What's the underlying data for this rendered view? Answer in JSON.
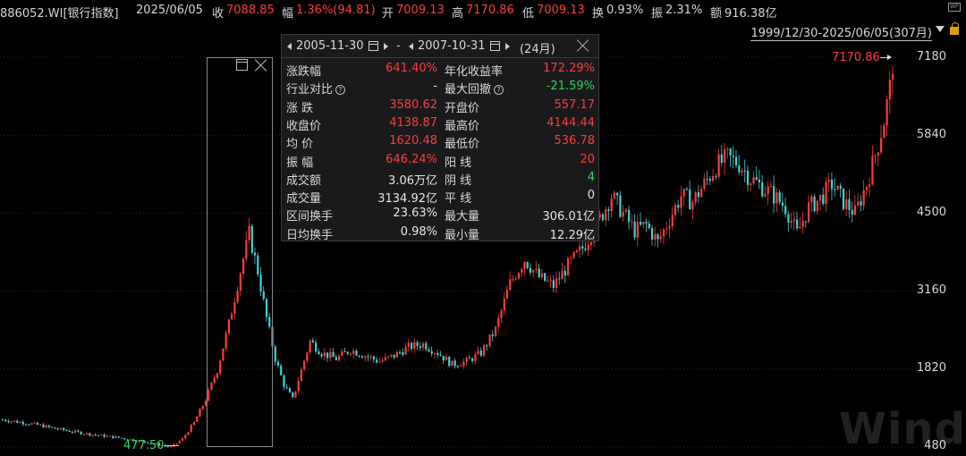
{
  "header": {
    "code": "886052.WI[银行指数]",
    "date": "2025/06/05",
    "close_label": "收",
    "close_value": "7088.85",
    "change_label": "幅",
    "change_value": "1.36%(94.81)",
    "open_label": "开",
    "open_value": "7009.13",
    "high_label": "高",
    "high_value": "7170.86",
    "low_label": "低",
    "low_value": "7009.13",
    "turnover_label": "换",
    "turnover_value": "0.93%",
    "amplitude_label": "振",
    "amplitude_value": "2.31%",
    "amount_label": "额",
    "amount_value": "916.38亿",
    "range_text": "1999/12/30-2025/06/05(307月)",
    "wp_badge": "WP"
  },
  "panel": {
    "start_date": "2005-11-30",
    "end_date": "2007-10-31",
    "separator": "-",
    "months": "(24月)",
    "rows": [
      {
        "l1": "涨跌幅",
        "v1": "641.40%",
        "c1": "red",
        "l2": "年化收益率",
        "v2": "172.29%",
        "c2": "red"
      },
      {
        "l1": "行业对比",
        "q1": true,
        "v1": "-",
        "c1": "wht",
        "l2": "最大回撤",
        "q2": true,
        "v2": "-21.59%",
        "c2": "green"
      },
      {
        "l1": "涨  跌",
        "v1": "3580.62",
        "c1": "red",
        "l2": "开盘价",
        "v2": "557.17",
        "c2": "red"
      },
      {
        "l1": "收盘价",
        "v1": "4138.87",
        "c1": "red",
        "l2": "最高价",
        "v2": "4144.44",
        "c2": "red"
      },
      {
        "l1": "均  价",
        "v1": "1620.48",
        "c1": "red",
        "l2": "最低价",
        "v2": "536.78",
        "c2": "red"
      },
      {
        "l1": "振  幅",
        "v1": "646.24%",
        "c1": "red",
        "l2": "阳  线",
        "v2": "20",
        "c2": "red"
      },
      {
        "l1": "成交额",
        "v1": "3.06万亿",
        "c1": "wht",
        "l2": "阴  线",
        "v2": "4",
        "c2": "green"
      },
      {
        "l1": "成交量",
        "v1": "3134.92亿",
        "c1": "wht",
        "l2": "平  线",
        "v2": "0",
        "c2": "wht"
      },
      {
        "l1": "区间换手",
        "v1": "23.63%",
        "c1": "wht",
        "l2": "最大量",
        "v2": "306.01亿",
        "c2": "wht"
      },
      {
        "l1": "日均换手",
        "v1": "0.98%",
        "c1": "wht",
        "l2": "最小量",
        "v2": "12.29亿",
        "c2": "wht"
      }
    ],
    "question_mark": "?"
  },
  "chart_data": {
    "type": "candlestick",
    "ytick_labels": [
      "7180",
      "5840",
      "4500",
      "3160",
      "1820",
      "480"
    ],
    "ytick_values": [
      7180,
      5840,
      4500,
      3160,
      1820,
      480
    ],
    "max_marker": "7170.86",
    "min_marker": "477.50",
    "watermark": "Wind",
    "colors": {
      "up": "#ff3c3c",
      "down": "#3fd2d6",
      "grid": "#2a2a2a"
    },
    "anchors": [
      [
        0,
        950
      ],
      [
        10,
        880
      ],
      [
        20,
        780
      ],
      [
        30,
        700
      ],
      [
        40,
        640
      ],
      [
        50,
        560
      ],
      [
        58,
        480
      ],
      [
        62,
        620
      ],
      [
        66,
        900
      ],
      [
        70,
        1300
      ],
      [
        74,
        1800
      ],
      [
        78,
        2600
      ],
      [
        82,
        3500
      ],
      [
        85,
        4150
      ],
      [
        88,
        3500
      ],
      [
        91,
        2700
      ],
      [
        94,
        2000
      ],
      [
        97,
        1550
      ],
      [
        100,
        1300
      ],
      [
        103,
        1800
      ],
      [
        106,
        2300
      ],
      [
        110,
        2100
      ],
      [
        115,
        2000
      ],
      [
        120,
        2150
      ],
      [
        125,
        2050
      ],
      [
        130,
        1950
      ],
      [
        135,
        2050
      ],
      [
        140,
        2200
      ],
      [
        145,
        2250
      ],
      [
        150,
        2100
      ],
      [
        155,
        1900
      ],
      [
        160,
        1950
      ],
      [
        165,
        2100
      ],
      [
        170,
        2500
      ],
      [
        175,
        3300
      ],
      [
        180,
        3700
      ],
      [
        185,
        3400
      ],
      [
        190,
        3250
      ],
      [
        195,
        3600
      ],
      [
        200,
        3900
      ],
      [
        205,
        4300
      ],
      [
        210,
        4800
      ],
      [
        214,
        4500
      ],
      [
        218,
        4200
      ],
      [
        222,
        4300
      ],
      [
        226,
        4000
      ],
      [
        230,
        4400
      ],
      [
        234,
        4800
      ],
      [
        238,
        4700
      ],
      [
        242,
        5000
      ],
      [
        246,
        5300
      ],
      [
        250,
        5450
      ],
      [
        254,
        5350
      ],
      [
        258,
        5100
      ],
      [
        262,
        4950
      ],
      [
        266,
        4800
      ],
      [
        270,
        4600
      ],
      [
        274,
        4150
      ],
      [
        278,
        4600
      ],
      [
        282,
        4750
      ],
      [
        286,
        5000
      ],
      [
        290,
        4700
      ],
      [
        294,
        4500
      ],
      [
        298,
        5000
      ],
      [
        301,
        5500
      ],
      [
        304,
        6100
      ],
      [
        306,
        6650
      ],
      [
        307,
        7088
      ]
    ]
  }
}
